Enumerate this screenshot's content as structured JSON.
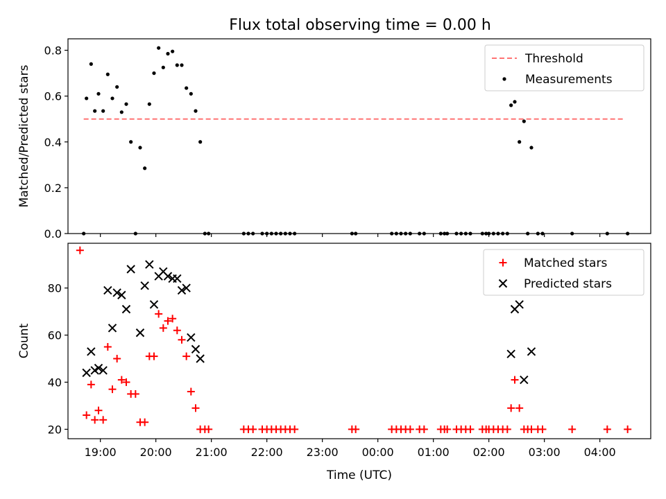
{
  "figure": {
    "title": "Flux total observing time = 0.00 h"
  },
  "chart_data": [
    {
      "type": "scatter",
      "ylabel": "Matched/Predicted stars",
      "xlabel": "",
      "xlim": [
        "18:25",
        "04:55"
      ],
      "ylim": [
        0,
        0.85
      ],
      "yticks": [
        0.0,
        0.2,
        0.4,
        0.6,
        0.8
      ],
      "ytick_labels": [
        "0.0",
        "0.2",
        "0.4",
        "0.6",
        "0.8"
      ],
      "xticks": [
        "19:00",
        "20:00",
        "21:00",
        "22:00",
        "23:00",
        "00:00",
        "01:00",
        "02:00",
        "03:00",
        "04:00"
      ],
      "xtick_labels_visible": false,
      "grid": false,
      "legend": {
        "placement": "top-right",
        "entries": [
          "Threshold",
          "Measurements"
        ]
      },
      "threshold": {
        "name": "Threshold",
        "value": 0.5,
        "x_start": "18:42",
        "x_end": "04:26",
        "color": "#ff7373",
        "style": "dashed"
      },
      "series": [
        {
          "name": "Measurements",
          "color": "#000000",
          "marker": "dot",
          "points": [
            [
              "18:42",
              0.0
            ],
            [
              "18:45",
              0.59
            ],
            [
              "18:50",
              0.74
            ],
            [
              "18:54",
              0.535
            ],
            [
              "18:58",
              0.61
            ],
            [
              "19:03",
              0.535
            ],
            [
              "19:08",
              0.695
            ],
            [
              "19:13",
              0.59
            ],
            [
              "19:18",
              0.64
            ],
            [
              "19:23",
              0.53
            ],
            [
              "19:28",
              0.565
            ],
            [
              "19:33",
              0.4
            ],
            [
              "19:38",
              0.0
            ],
            [
              "19:43",
              0.375
            ],
            [
              "19:48",
              0.285
            ],
            [
              "19:53",
              0.565
            ],
            [
              "19:58",
              0.7
            ],
            [
              "20:03",
              0.81
            ],
            [
              "20:08",
              0.725
            ],
            [
              "20:13",
              0.785
            ],
            [
              "20:18",
              0.795
            ],
            [
              "20:23",
              0.735
            ],
            [
              "20:28",
              0.735
            ],
            [
              "20:33",
              0.635
            ],
            [
              "20:38",
              0.61
            ],
            [
              "20:43",
              0.535
            ],
            [
              "20:48",
              0.4
            ],
            [
              "20:53",
              0.0
            ],
            [
              "20:57",
              0.0
            ],
            [
              "21:35",
              0.0
            ],
            [
              "21:40",
              0.0
            ],
            [
              "21:45",
              0.0
            ],
            [
              "21:55",
              0.0
            ],
            [
              "22:00",
              0.0
            ],
            [
              "22:05",
              0.0
            ],
            [
              "22:10",
              0.0
            ],
            [
              "22:15",
              0.0
            ],
            [
              "22:20",
              0.0
            ],
            [
              "22:25",
              0.0
            ],
            [
              "22:30",
              0.0
            ],
            [
              "23:32",
              0.0
            ],
            [
              "23:36",
              0.0
            ],
            [
              "00:15",
              0.0
            ],
            [
              "00:20",
              0.0
            ],
            [
              "00:25",
              0.0
            ],
            [
              "00:30",
              0.0
            ],
            [
              "00:35",
              0.0
            ],
            [
              "00:45",
              0.0
            ],
            [
              "00:50",
              0.0
            ],
            [
              "01:08",
              0.0
            ],
            [
              "01:12",
              0.0
            ],
            [
              "01:15",
              0.0
            ],
            [
              "01:25",
              0.0
            ],
            [
              "01:30",
              0.0
            ],
            [
              "01:35",
              0.0
            ],
            [
              "01:40",
              0.0
            ],
            [
              "01:53",
              0.0
            ],
            [
              "01:57",
              0.0
            ],
            [
              "02:00",
              0.0
            ],
            [
              "02:05",
              0.0
            ],
            [
              "02:10",
              0.0
            ],
            [
              "02:15",
              0.0
            ],
            [
              "02:20",
              0.0
            ],
            [
              "02:24",
              0.56
            ],
            [
              "02:28",
              0.575
            ],
            [
              "02:33",
              0.4
            ],
            [
              "02:38",
              0.49
            ],
            [
              "02:42",
              0.0
            ],
            [
              "02:46",
              0.375
            ],
            [
              "02:53",
              0.0
            ],
            [
              "02:58",
              0.0
            ],
            [
              "03:30",
              0.0
            ],
            [
              "04:08",
              0.0
            ],
            [
              "04:30",
              0.0
            ]
          ]
        }
      ]
    },
    {
      "type": "scatter",
      "ylabel": "Count",
      "xlabel": "Time (UTC)",
      "xlim": [
        "18:25",
        "04:55"
      ],
      "ylim": [
        16,
        99
      ],
      "yticks": [
        20,
        40,
        60,
        80
      ],
      "ytick_labels": [
        "20",
        "40",
        "60",
        "80"
      ],
      "xticks": [
        "19:00",
        "20:00",
        "21:00",
        "22:00",
        "23:00",
        "00:00",
        "01:00",
        "02:00",
        "03:00",
        "04:00"
      ],
      "xtick_labels": [
        "19:00",
        "20:00",
        "21:00",
        "22:00",
        "23:00",
        "00:00",
        "01:00",
        "02:00",
        "03:00",
        "04:00"
      ],
      "grid": false,
      "legend": {
        "placement": "top-right",
        "entries": [
          "Matched stars",
          "Predicted stars"
        ]
      },
      "series": [
        {
          "name": "Matched stars",
          "color": "#ff0000",
          "marker": "plus",
          "points": [
            [
              "18:38",
              96
            ],
            [
              "18:45",
              26
            ],
            [
              "18:50",
              39
            ],
            [
              "18:54",
              24
            ],
            [
              "18:58",
              28
            ],
            [
              "19:03",
              24
            ],
            [
              "19:08",
              55
            ],
            [
              "19:13",
              37
            ],
            [
              "19:18",
              50
            ],
            [
              "19:23",
              41
            ],
            [
              "19:28",
              40
            ],
            [
              "19:33",
              35
            ],
            [
              "19:38",
              35
            ],
            [
              "19:43",
              23
            ],
            [
              "19:48",
              23
            ],
            [
              "19:53",
              51
            ],
            [
              "19:58",
              51
            ],
            [
              "20:03",
              69
            ],
            [
              "20:08",
              63
            ],
            [
              "20:13",
              66
            ],
            [
              "20:18",
              67
            ],
            [
              "20:23",
              62
            ],
            [
              "20:28",
              58
            ],
            [
              "20:33",
              51
            ],
            [
              "20:38",
              36
            ],
            [
              "20:43",
              29
            ],
            [
              "20:48",
              20
            ],
            [
              "20:53",
              20
            ],
            [
              "20:57",
              20
            ],
            [
              "21:35",
              20
            ],
            [
              "21:40",
              20
            ],
            [
              "21:45",
              20
            ],
            [
              "21:55",
              20
            ],
            [
              "22:00",
              20
            ],
            [
              "22:05",
              20
            ],
            [
              "22:10",
              20
            ],
            [
              "22:15",
              20
            ],
            [
              "22:20",
              20
            ],
            [
              "22:25",
              20
            ],
            [
              "22:30",
              20
            ],
            [
              "23:32",
              20
            ],
            [
              "23:36",
              20
            ],
            [
              "00:15",
              20
            ],
            [
              "00:20",
              20
            ],
            [
              "00:25",
              20
            ],
            [
              "00:30",
              20
            ],
            [
              "00:35",
              20
            ],
            [
              "00:45",
              20
            ],
            [
              "00:50",
              20
            ],
            [
              "01:08",
              20
            ],
            [
              "01:12",
              20
            ],
            [
              "01:15",
              20
            ],
            [
              "01:25",
              20
            ],
            [
              "01:30",
              20
            ],
            [
              "01:35",
              20
            ],
            [
              "01:40",
              20
            ],
            [
              "01:53",
              20
            ],
            [
              "01:57",
              20
            ],
            [
              "02:00",
              20
            ],
            [
              "02:05",
              20
            ],
            [
              "02:10",
              20
            ],
            [
              "02:15",
              20
            ],
            [
              "02:20",
              20
            ],
            [
              "02:24",
              29
            ],
            [
              "02:28",
              41
            ],
            [
              "02:33",
              29
            ],
            [
              "02:38",
              20
            ],
            [
              "02:42",
              20
            ],
            [
              "02:46",
              20
            ],
            [
              "02:53",
              20
            ],
            [
              "02:58",
              20
            ],
            [
              "03:30",
              20
            ],
            [
              "04:08",
              20
            ],
            [
              "04:30",
              20
            ]
          ]
        },
        {
          "name": "Predicted stars",
          "color": "#000000",
          "marker": "x",
          "points": [
            [
              "18:45",
              44
            ],
            [
              "18:50",
              53
            ],
            [
              "18:54",
              45
            ],
            [
              "18:58",
              46
            ],
            [
              "19:03",
              45
            ],
            [
              "19:08",
              79
            ],
            [
              "19:13",
              63
            ],
            [
              "19:18",
              78
            ],
            [
              "19:23",
              77
            ],
            [
              "19:28",
              71
            ],
            [
              "19:33",
              88
            ],
            [
              "19:43",
              61
            ],
            [
              "19:48",
              81
            ],
            [
              "19:53",
              90
            ],
            [
              "19:58",
              73
            ],
            [
              "20:03",
              85
            ],
            [
              "20:08",
              87
            ],
            [
              "20:13",
              85
            ],
            [
              "20:18",
              84
            ],
            [
              "20:23",
              84
            ],
            [
              "20:28",
              79
            ],
            [
              "20:33",
              80
            ],
            [
              "20:38",
              59
            ],
            [
              "20:43",
              54
            ],
            [
              "20:48",
              50
            ],
            [
              "02:24",
              52
            ],
            [
              "02:28",
              71
            ],
            [
              "02:33",
              73
            ],
            [
              "02:38",
              41
            ],
            [
              "02:46",
              53
            ]
          ]
        }
      ]
    }
  ]
}
